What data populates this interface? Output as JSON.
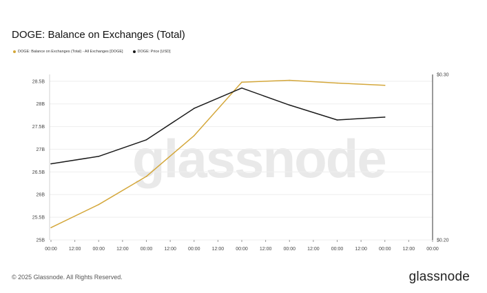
{
  "title": "DOGE: Balance on Exchanges (Total)",
  "legend": [
    {
      "label": "DOGE: Balance on Exchanges (Total) - All Exchanges [DOGE]",
      "color": "#d4a73a"
    },
    {
      "label": "DOGE: Price [USD]",
      "color": "#1a1a1a"
    }
  ],
  "watermark": "glassnode",
  "footer": "© 2025 Glassnode. All Rights Reserved.",
  "brand": "glassnode",
  "chart_data": {
    "type": "line",
    "x_ticks": [
      "00:00",
      "12:00",
      "00:00",
      "12:00",
      "00:00",
      "12:00",
      "00:00",
      "12:00",
      "00:00",
      "12:00",
      "00:00",
      "12:00",
      "00:00",
      "12:00",
      "00:00",
      "12:00",
      "00:00"
    ],
    "y_left_ticks": [
      "25B",
      "25.5B",
      "26B",
      "26.5B",
      "27B",
      "27.5B",
      "28B",
      "28.5B"
    ],
    "y_left_values": [
      25,
      25.5,
      26,
      26.5,
      27,
      27.5,
      28,
      28.5
    ],
    "y_left_lim": [
      25,
      28.65
    ],
    "y_right_ticks": [
      "$0.20",
      "$0.30"
    ],
    "y_right_values": [
      0.2,
      0.3
    ],
    "y_right_lim": [
      0.2,
      0.3
    ],
    "x_lim": [
      0,
      16
    ],
    "series": [
      {
        "name": "DOGE: Balance on Exchanges (Total) - All Exchanges [DOGE]",
        "axis": "left",
        "color": "#d4a73a",
        "x": [
          0,
          2,
          4,
          6,
          8,
          10,
          12,
          14
        ],
        "values": [
          25.27,
          25.78,
          26.4,
          27.3,
          28.48,
          28.52,
          28.46,
          28.41
        ]
      },
      {
        "name": "DOGE: Price [USD]",
        "axis": "right",
        "color": "#1a1a1a",
        "x": [
          0,
          2,
          4,
          6,
          8,
          10,
          12,
          14
        ],
        "values": [
          0.246,
          0.2505,
          0.2605,
          0.2795,
          0.2918,
          0.2815,
          0.2725,
          0.2742
        ]
      }
    ],
    "grid": true
  }
}
